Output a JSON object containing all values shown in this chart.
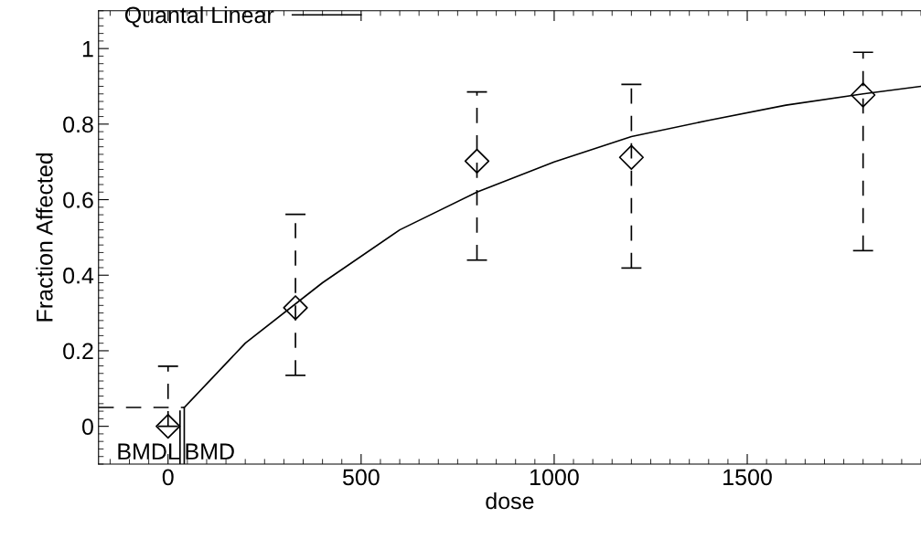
{
  "chart_data": {
    "type": "scatter",
    "xlabel": "dose",
    "ylabel": "Fraction Affected",
    "xlim": [
      -180,
      1950
    ],
    "xticks": [
      0,
      500,
      1000,
      1500
    ],
    "ylim": [
      -0.1,
      1.1
    ],
    "yticks": [
      0,
      0.2,
      0.4,
      0.6,
      0.8,
      1
    ],
    "grid": false,
    "legend": "top left",
    "series": [
      {
        "color": "#000000",
        "marker": "diamond",
        "x": [
          0,
          330,
          800,
          1200,
          1800
        ],
        "values": [
          0,
          0.314,
          0.702,
          0.712,
          0.877
        ],
        "errors": [
          [
            0,
            0.159
          ],
          [
            0.135,
            0.561
          ],
          [
            0.44,
            0.885
          ],
          [
            0.419,
            0.905
          ],
          [
            0.465,
            0.99
          ]
        ],
        "line_style": "dashed"
      },
      {
        "type": "line",
        "name": "Quantal Linear",
        "color": "#000000",
        "x": [
          42,
          200,
          400,
          600,
          800,
          1000,
          1200,
          1400,
          1600,
          1800,
          1950
        ],
        "values": [
          0.05,
          0.22,
          0.38,
          0.52,
          0.62,
          0.7,
          0.767,
          0.81,
          0.85,
          0.88,
          0.9
        ],
        "line_style": "solid"
      },
      {
        "type": "line",
        "color": "#000000",
        "x": [
          -180,
          42
        ],
        "values": [
          0.05,
          0.05
        ],
        "line_style": "dashed"
      },
      {
        "type": "line",
        "color": "#000000",
        "x": [
          31,
          31
        ],
        "values": [
          -0.1,
          0.04
        ],
        "line_style": "solid"
      },
      {
        "type": "line",
        "color": "#000000",
        "x": [
          42,
          42
        ],
        "values": [
          -0.1,
          0.05
        ],
        "line_style": "solid"
      }
    ],
    "annotations": [
      {
        "text": "BMDL",
        "x": 31,
        "y": -0.1
      },
      {
        "text": "BMD",
        "x": 42,
        "y": -0.1
      }
    ]
  }
}
